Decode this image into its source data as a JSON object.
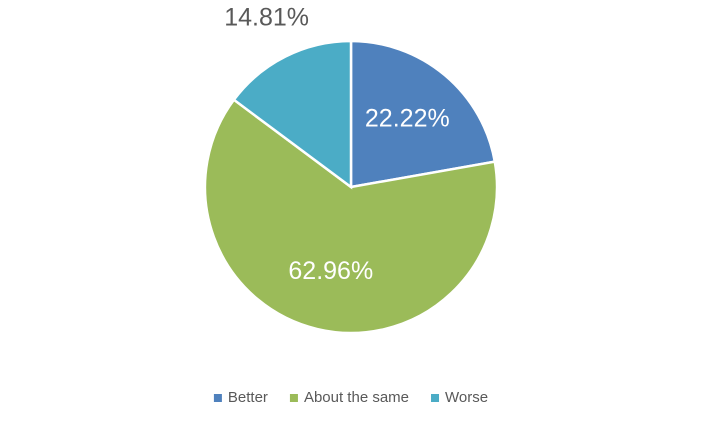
{
  "chart_data": {
    "type": "pie",
    "categories": [
      "Better",
      "About the same",
      "Worse"
    ],
    "values": [
      22.22,
      62.96,
      14.81
    ],
    "value_labels": [
      "22.22%",
      "62.96%",
      "14.81%"
    ],
    "colors": [
      "#4f81bd",
      "#9bbb59",
      "#4bacc6"
    ],
    "legend": "bottom"
  }
}
